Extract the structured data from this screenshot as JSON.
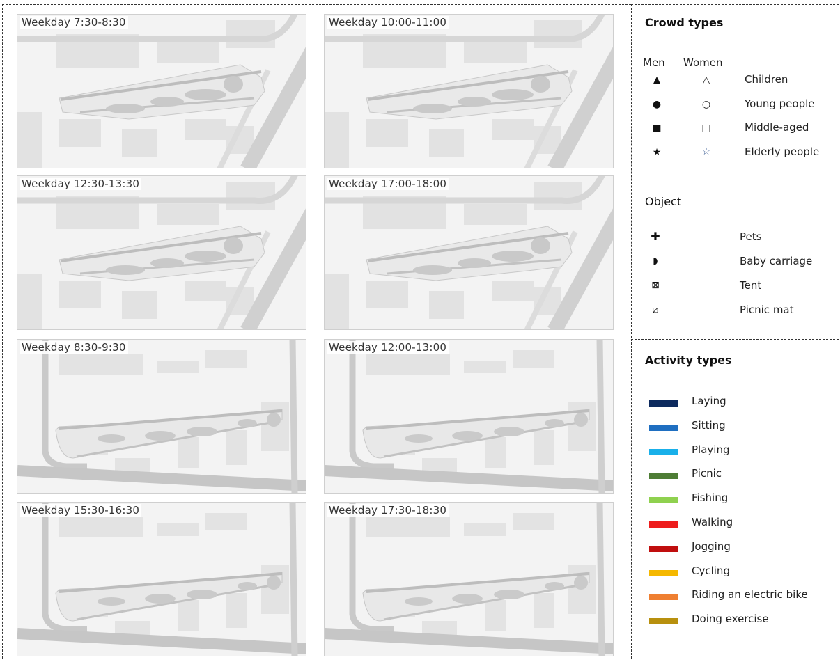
{
  "panels": [
    {
      "label": "Weekday 7:30-8:30"
    },
    {
      "label": "Weekday 10:00-11:00"
    },
    {
      "label": "Weekday 12:30-13:30"
    },
    {
      "label": "Weekday 17:00-18:00"
    },
    {
      "label": "Weekday 8:30-9:30"
    },
    {
      "label": "Weekday 12:00-13:00"
    },
    {
      "label": "Weekday 15:30-16:30"
    },
    {
      "label": "Weekday 17:30-18:30"
    }
  ],
  "crowd": {
    "title": "Crowd types",
    "men": "Men",
    "women": "Women",
    "rows": [
      {
        "label": "Children",
        "men_icon": "filled-triangle-icon",
        "women_icon": "hollow-triangle-icon"
      },
      {
        "label": "Young people",
        "men_icon": "filled-circle-icon",
        "women_icon": "hollow-circle-icon"
      },
      {
        "label": "Middle-aged",
        "men_icon": "filled-square-icon",
        "women_icon": "hollow-square-icon"
      },
      {
        "label": "Elderly people",
        "men_icon": "filled-star-icon",
        "women_icon": "hollow-star-icon"
      }
    ]
  },
  "objects": {
    "title": "Object",
    "rows": [
      {
        "label": "Pets",
        "icon": "plus-icon"
      },
      {
        "label": "Baby carriage",
        "icon": "half-circle-icon"
      },
      {
        "label": "Tent",
        "icon": "boxed-x-icon"
      },
      {
        "label": "Picnic mat",
        "icon": "boxed-slash-icon"
      }
    ]
  },
  "activities": {
    "title": "Activity types",
    "rows": [
      {
        "label": "Laying",
        "color": "#0d2a5e"
      },
      {
        "label": "Sitting",
        "color": "#1f6fc1"
      },
      {
        "label": "Playing",
        "color": "#19b0ea"
      },
      {
        "label": "Picnic",
        "color": "#4e7d35"
      },
      {
        "label": "Fishing",
        "color": "#8fd14f"
      },
      {
        "label": "Walking",
        "color": "#ee1d1d"
      },
      {
        "label": "Jogging",
        "color": "#c00e0e"
      },
      {
        "label": "Cycling",
        "color": "#f5b800"
      },
      {
        "label": "Riding an electric bike",
        "color": "#ef7f31"
      },
      {
        "label": "Doing exercise",
        "color": "#b8900e"
      }
    ]
  }
}
